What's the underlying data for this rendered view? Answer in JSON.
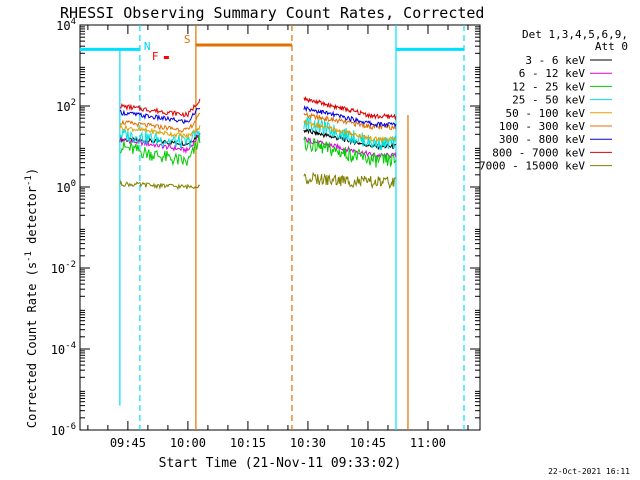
{
  "chart_data": {
    "type": "line",
    "title": "RHESSI Observing Summary Count Rates, Corrected",
    "ylabel_main": "Corrected Count Rate (s",
    "ylabel_sup1": "-1",
    "ylabel_mid": " detector",
    "ylabel_sup2": "-1",
    "ylabel_end": ")",
    "xlabel": "Start Time (21-Nov-11 09:33:02)",
    "date_stamp": "22-Oct-2021 16:11",
    "y_log": true,
    "ylim": [
      1e-06,
      10000
    ],
    "y_ticks": [
      {
        "base": "10",
        "exp": "4",
        "value": 10000
      },
      {
        "base": "10",
        "exp": "2",
        "value": 100
      },
      {
        "base": "10",
        "exp": "0",
        "value": 1
      },
      {
        "base": "10",
        "exp": "-2",
        "value": 0.01
      },
      {
        "base": "10",
        "exp": "-4",
        "value": 0.0001
      },
      {
        "base": "10",
        "exp": "-6",
        "value": 1e-06
      }
    ],
    "xlim": [
      "09:33:02",
      "11:13:00"
    ],
    "x_ticks": [
      "09:45",
      "10:00",
      "10:15",
      "10:30",
      "10:45",
      "11:00"
    ],
    "legend_header": [
      "Det 1,3,4,5,6,9,",
      "Att 0"
    ],
    "series": [
      {
        "name": "3 - 6 keV",
        "color": "#000000",
        "seg1": [
          15,
          12,
          20
        ],
        "seg2": [
          25,
          10
        ]
      },
      {
        "name": "6 - 12 keV",
        "color": "#dd00dd",
        "seg1": [
          15,
          8,
          20
        ],
        "seg2": [
          15,
          6
        ]
      },
      {
        "name": "12 - 25 keV",
        "color": "#00cc00",
        "seg1": [
          10,
          4,
          15
        ],
        "seg2": [
          12,
          4.5
        ]
      },
      {
        "name": "25 - 50 keV",
        "color": "#00e0e0",
        "seg1": [
          20,
          12,
          25
        ],
        "seg2": [
          40,
          12
        ]
      },
      {
        "name": "50 - 100 keV",
        "color": "#e0a000",
        "seg1": [
          30,
          18,
          30
        ],
        "seg2": [
          40,
          15
        ]
      },
      {
        "name": "100 - 300 keV",
        "color": "#e07000",
        "seg1": [
          40,
          25,
          60
        ],
        "seg2": [
          60,
          30
        ]
      },
      {
        "name": "300 - 800 keV",
        "color": "#0000dd",
        "seg1": [
          70,
          40,
          100
        ],
        "seg2": [
          90,
          35
        ]
      },
      {
        "name": "800 - 7000 keV",
        "color": "#dd0000",
        "seg1": [
          100,
          60,
          150
        ],
        "seg2": [
          150,
          55
        ]
      },
      {
        "name": "7000 - 15000 keV",
        "color": "#808000",
        "seg1": [
          1.2,
          1.0,
          1.1
        ],
        "seg2": [
          1.6,
          1.3
        ]
      }
    ],
    "segments": {
      "seg1": [
        "09:43",
        "10:03"
      ],
      "seg2": [
        "10:29",
        "10:52"
      ]
    },
    "annotations": [
      {
        "label": "N",
        "color": "#00d0ff",
        "time": "09:49"
      },
      {
        "label": "F",
        "color": "#ff0000",
        "time": "09:51"
      },
      {
        "label": "S",
        "color": "#e07000",
        "time": "09:59"
      }
    ],
    "bars": [
      {
        "name": "night-bar-1",
        "color": "#00e0ff",
        "start": "09:33",
        "end": "09:48",
        "value": 2500
      },
      {
        "name": "saa-bar",
        "color": "#e07000",
        "start": "10:02",
        "end": "10:26",
        "value": 3200
      },
      {
        "name": "night-bar-2",
        "color": "#00e0ff",
        "start": "10:52",
        "end": "11:09",
        "value": 2500
      }
    ],
    "vlines": [
      {
        "name": "night-start-line-1",
        "color": "#00e0ff",
        "time": "09:43",
        "dashed": false
      },
      {
        "name": "night-end-line-1",
        "color": "#00e0ff",
        "time": "09:48",
        "dashed": true
      },
      {
        "name": "saa-start-line",
        "color": "#e07000",
        "time": "10:02",
        "dashed": false
      },
      {
        "name": "saa-end-line",
        "color": "#e07000",
        "time": "10:26",
        "dashed": true
      },
      {
        "name": "night-start-line-2",
        "color": "#00e0ff",
        "time": "10:52",
        "dashed": false
      },
      {
        "name": "night-end-line-2",
        "color": "#00e0ff",
        "time": "11:09",
        "dashed": true
      },
      {
        "name": "flare-line",
        "color": "#e07000",
        "time": "10:55",
        "dashed": false
      }
    ]
  }
}
